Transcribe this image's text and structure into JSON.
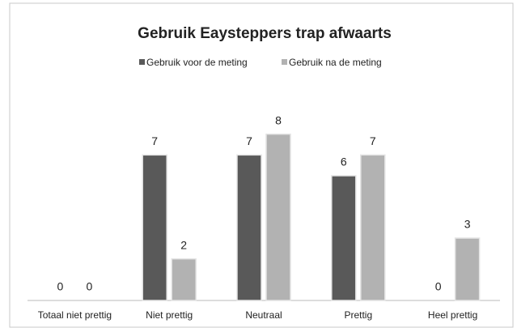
{
  "chart_data": {
    "type": "bar",
    "title": "Gebruik Eaysteppers trap afwaarts",
    "categories": [
      "Totaal niet prettig",
      "Niet prettig",
      "Neutraal",
      "Prettig",
      "Heel prettig"
    ],
    "series": [
      {
        "name": "Gebruik voor de meting",
        "color": "#595959",
        "values": [
          0,
          7,
          7,
          6,
          0
        ]
      },
      {
        "name": "Gebruik na de meting",
        "color": "#b2b2b2",
        "values": [
          0,
          2,
          8,
          7,
          3
        ]
      }
    ],
    "ylim": [
      0,
      9
    ],
    "legend": "top"
  }
}
